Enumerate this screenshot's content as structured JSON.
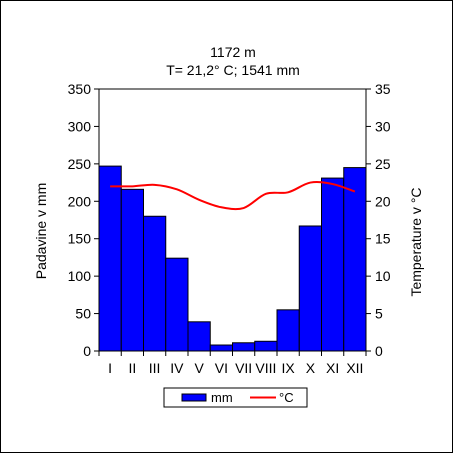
{
  "chart_data": {
    "type": "bar",
    "title": "1172 m",
    "subtitle": "T= 21,2° C; 1541 mm",
    "categories": [
      "I",
      "II",
      "III",
      "IV",
      "V",
      "VI",
      "VII",
      "VIII",
      "IX",
      "X",
      "XI",
      "XII"
    ],
    "series": [
      {
        "name": "mm",
        "kind": "bar",
        "axis": "left",
        "color": "#0000FF",
        "values": [
          247,
          216,
          180,
          124,
          39,
          8,
          11,
          13,
          55,
          167,
          231,
          245
        ]
      },
      {
        "name": "°C",
        "kind": "line",
        "axis": "right",
        "color": "#FF0000",
        "values": [
          22.0,
          22.0,
          22.2,
          21.6,
          20.2,
          19.2,
          19.1,
          21.0,
          21.2,
          22.5,
          22.3,
          21.3
        ]
      }
    ],
    "ylabel": "Padavine v mm",
    "ylabel_right": "Temperature v °C",
    "ylim": [
      0,
      350
    ],
    "ylim_right": [
      0,
      35
    ],
    "yticks": [
      0,
      50,
      100,
      150,
      200,
      250,
      300,
      350
    ],
    "yticks_right": [
      0,
      5,
      10,
      15,
      20,
      25,
      30,
      35
    ],
    "grid": false,
    "legend_position": "bottom",
    "bar_outline_color": "#000000",
    "frame_color": "#000000"
  }
}
